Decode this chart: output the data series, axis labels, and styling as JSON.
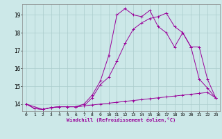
{
  "xlabel": "Windchill (Refroidissement éolien,°C)",
  "background_color": "#cce8e8",
  "grid_color": "#aacccc",
  "line_color": "#990099",
  "xlim": [
    -0.5,
    23.5
  ],
  "ylim": [
    13.6,
    19.6
  ],
  "yticks": [
    14,
    15,
    16,
    17,
    18,
    19
  ],
  "xticks": [
    0,
    1,
    2,
    3,
    4,
    5,
    6,
    7,
    8,
    9,
    10,
    11,
    12,
    13,
    14,
    15,
    16,
    17,
    18,
    19,
    20,
    21,
    22,
    23
  ],
  "series1_x": [
    0,
    1,
    2,
    3,
    4,
    5,
    6,
    7,
    8,
    9,
    10,
    11,
    12,
    13,
    14,
    15,
    16,
    17,
    18,
    19,
    20,
    21,
    22,
    23
  ],
  "series1_y": [
    14.0,
    13.75,
    13.7,
    13.8,
    13.85,
    13.85,
    13.85,
    14.0,
    14.5,
    15.3,
    16.7,
    19.0,
    19.35,
    19.0,
    18.9,
    19.25,
    18.35,
    18.0,
    17.2,
    18.0,
    17.2,
    15.4,
    14.9,
    14.35
  ],
  "series2_x": [
    0,
    2,
    3,
    4,
    5,
    6,
    7,
    8,
    9,
    10,
    11,
    12,
    13,
    14,
    15,
    16,
    17,
    18,
    19,
    20,
    21,
    22,
    23
  ],
  "series2_y": [
    14.0,
    13.7,
    13.8,
    13.85,
    13.85,
    13.85,
    13.9,
    14.35,
    15.1,
    15.5,
    16.4,
    17.4,
    18.2,
    18.55,
    18.8,
    18.9,
    19.1,
    18.35,
    18.0,
    17.2,
    17.2,
    15.4,
    14.35
  ],
  "series3_x": [
    0,
    1,
    2,
    3,
    4,
    5,
    6,
    7,
    8,
    9,
    10,
    11,
    12,
    13,
    14,
    15,
    16,
    17,
    18,
    19,
    20,
    21,
    22,
    23
  ],
  "series3_y": [
    14.0,
    13.75,
    13.7,
    13.8,
    13.85,
    13.85,
    13.85,
    13.9,
    13.95,
    14.0,
    14.05,
    14.1,
    14.15,
    14.2,
    14.25,
    14.3,
    14.35,
    14.4,
    14.45,
    14.5,
    14.55,
    14.6,
    14.65,
    14.35
  ]
}
